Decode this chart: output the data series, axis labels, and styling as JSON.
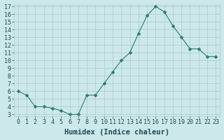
{
  "x": [
    0,
    1,
    2,
    3,
    4,
    5,
    6,
    7,
    8,
    9,
    10,
    11,
    12,
    13,
    14,
    15,
    16,
    17,
    18,
    19,
    20,
    21,
    22,
    23
  ],
  "y": [
    6.0,
    5.5,
    4.0,
    4.0,
    3.8,
    3.5,
    3.0,
    3.0,
    5.5,
    5.5,
    7.0,
    8.5,
    10.0,
    11.0,
    13.5,
    15.8,
    17.0,
    16.3,
    14.5,
    13.0,
    11.5,
    11.5,
    10.5,
    10.5
  ],
  "xlabel": "Humidex (Indice chaleur)",
  "yticks": [
    3,
    4,
    5,
    6,
    7,
    8,
    9,
    10,
    11,
    12,
    13,
    14,
    15,
    16,
    17
  ],
  "xticks": [
    0,
    1,
    2,
    3,
    4,
    5,
    6,
    7,
    8,
    9,
    10,
    11,
    12,
    13,
    14,
    15,
    16,
    17,
    18,
    19,
    20,
    21,
    22,
    23
  ],
  "line_color": "#2d7a6a",
  "marker_size": 2.5,
  "bg_color": "#cce8e8",
  "grid_color": "#aacccc",
  "xlabel_fontsize": 7.5,
  "tick_fontsize": 6.0,
  "xlabel_color": "#1a4a5a",
  "tick_color": "#1a4a5a",
  "xlim": [
    -0.5,
    23.5
  ],
  "ylim": [
    2.8,
    17.2
  ]
}
